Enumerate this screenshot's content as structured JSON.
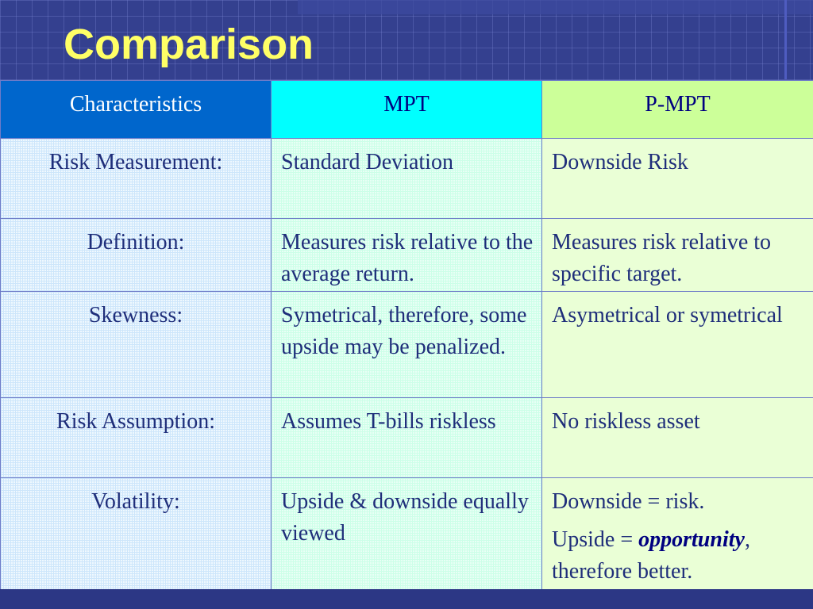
{
  "slide": {
    "title": "Comparison"
  },
  "table": {
    "headers": [
      "Characteristics",
      "MPT",
      "P-MPT"
    ],
    "rows": [
      {
        "label": "Risk Measurement:",
        "mpt": "Standard Deviation",
        "pmpt": "Downside Risk"
      },
      {
        "label": "Definition:",
        "mpt": "Measures risk relative to the average return.",
        "pmpt": "Measures risk relative to specific target."
      },
      {
        "label": "Skewness:",
        "mpt": "Symetrical, therefore, some upside may be penalized.",
        "pmpt": "Asymetrical or symetrical"
      },
      {
        "label": "Risk Assumption:",
        "mpt": "Assumes T-bills riskless",
        "pmpt": "No riskless asset"
      },
      {
        "label": "Volatility:",
        "mpt": "Upside & downside equally viewed",
        "pmpt": "Downside = risk.",
        "pmpt_line2_prefix": "Upside = ",
        "pmpt_line2_emph": "opportunity",
        "pmpt_line2_suffix": ", therefore better."
      }
    ]
  },
  "colors": {
    "background": "#34408f",
    "title": "#ffff66",
    "header_characteristics": "#0066cc",
    "header_mpt": "#00ffff",
    "header_pmpt": "#ccff99",
    "body_text": "#1f2e7a"
  }
}
